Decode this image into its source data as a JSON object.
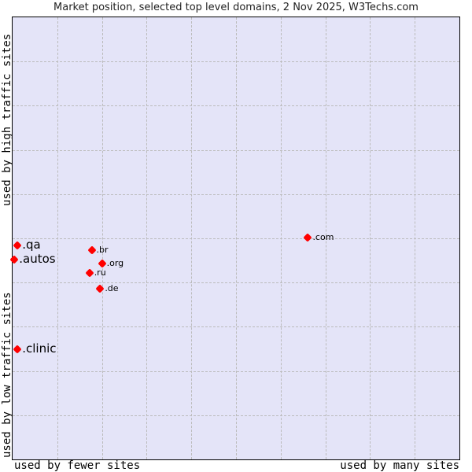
{
  "chart_data": {
    "type": "scatter",
    "title": "Market position, selected top level domains, 2 Nov 2025, W3Techs.com",
    "xlabel_left": "used by fewer sites",
    "xlabel_right": "used by many sites",
    "ylabel_top": "used by high traffic sites",
    "ylabel_bottom": "used by low traffic sites",
    "grid": true,
    "legend": "none",
    "xlim": [
      0,
      100
    ],
    "ylim": [
      0,
      100
    ],
    "point_color": "#ff0000",
    "background_color": "#e4e4f8",
    "points": [
      {
        "label": ".com",
        "x": 66.1,
        "y": 50.2,
        "size": "small"
      },
      {
        "label": ".qa",
        "x": 1.1,
        "y": 48.4,
        "size": "big"
      },
      {
        "label": ".br",
        "x": 17.7,
        "y": 47.3,
        "size": "small"
      },
      {
        "label": ".autos",
        "x": 0.4,
        "y": 45.2,
        "size": "big"
      },
      {
        "label": ".org",
        "x": 20.0,
        "y": 44.3,
        "size": "small"
      },
      {
        "label": ".ru",
        "x": 17.2,
        "y": 42.2,
        "size": "small"
      },
      {
        "label": ".de",
        "x": 19.6,
        "y": 38.7,
        "size": "small"
      },
      {
        "label": ".clinic",
        "x": 1.1,
        "y": 25.0,
        "size": "big"
      }
    ]
  }
}
